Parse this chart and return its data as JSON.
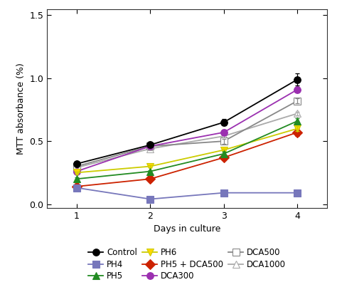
{
  "days": [
    1,
    2,
    3,
    4
  ],
  "series": {
    "Control": {
      "values": [
        0.32,
        0.47,
        0.65,
        0.99
      ],
      "errors": [
        0.015,
        0.02,
        0.025,
        0.05
      ],
      "color": "#000000",
      "marker": "o",
      "mfc": "#000000",
      "mec": "#000000",
      "zorder": 10
    },
    "PH4": {
      "values": [
        0.13,
        0.04,
        0.09,
        0.09
      ],
      "errors": [
        0.008,
        0.005,
        0.005,
        0.005
      ],
      "color": "#7777bb",
      "marker": "s",
      "mfc": "#7777bb",
      "mec": "#7777bb",
      "zorder": 9
    },
    "PH5": {
      "values": [
        0.2,
        0.26,
        0.4,
        0.66
      ],
      "errors": [
        0.01,
        0.01,
        0.015,
        0.02
      ],
      "color": "#228B22",
      "marker": "^",
      "mfc": "#228B22",
      "mec": "#228B22",
      "zorder": 8
    },
    "PH6": {
      "values": [
        0.25,
        0.3,
        0.43,
        0.6
      ],
      "errors": [
        0.01,
        0.01,
        0.01,
        0.02
      ],
      "color": "#cccc00",
      "marker": "v",
      "mfc": "#FFD700",
      "mec": "#cccc00",
      "zorder": 7
    },
    "PH5 + DCA500": {
      "values": [
        0.14,
        0.2,
        0.37,
        0.57
      ],
      "errors": [
        0.01,
        0.01,
        0.02,
        0.03
      ],
      "color": "#cc2200",
      "marker": "D",
      "mfc": "#cc2200",
      "mec": "#cc2200",
      "zorder": 6
    },
    "DCA300": {
      "values": [
        0.26,
        0.46,
        0.57,
        0.91
      ],
      "errors": [
        0.01,
        0.015,
        0.02,
        0.02
      ],
      "color": "#9B30B0",
      "marker": "o",
      "mfc": "#9B30B0",
      "mec": "#9B30B0",
      "zorder": 5
    },
    "DCA500": {
      "values": [
        0.3,
        0.46,
        0.5,
        0.82
      ],
      "errors": [
        0.01,
        0.015,
        0.02,
        0.02
      ],
      "color": "#888888",
      "marker": "s",
      "mfc": "#ffffff",
      "mec": "#888888",
      "zorder": 4
    },
    "DCA1000": {
      "values": [
        0.29,
        0.44,
        0.54,
        0.72
      ],
      "errors": [
        0.01,
        0.015,
        0.015,
        0.015
      ],
      "color": "#aaaaaa",
      "marker": "^",
      "mfc": "#ffffff",
      "mec": "#aaaaaa",
      "zorder": 3
    }
  },
  "xlabel": "Days in culture",
  "ylabel": "MTT absorbance (%)",
  "ylim": [
    -0.03,
    1.55
  ],
  "yticks": [
    0.0,
    0.5,
    1.0,
    1.5
  ],
  "xticks": [
    1,
    2,
    3,
    4
  ],
  "background_color": "#ffffff",
  "legend_order": [
    "Control",
    "PH4",
    "PH5",
    "PH6",
    "PH5 + DCA500",
    "DCA300",
    "DCA500",
    "DCA1000"
  ]
}
